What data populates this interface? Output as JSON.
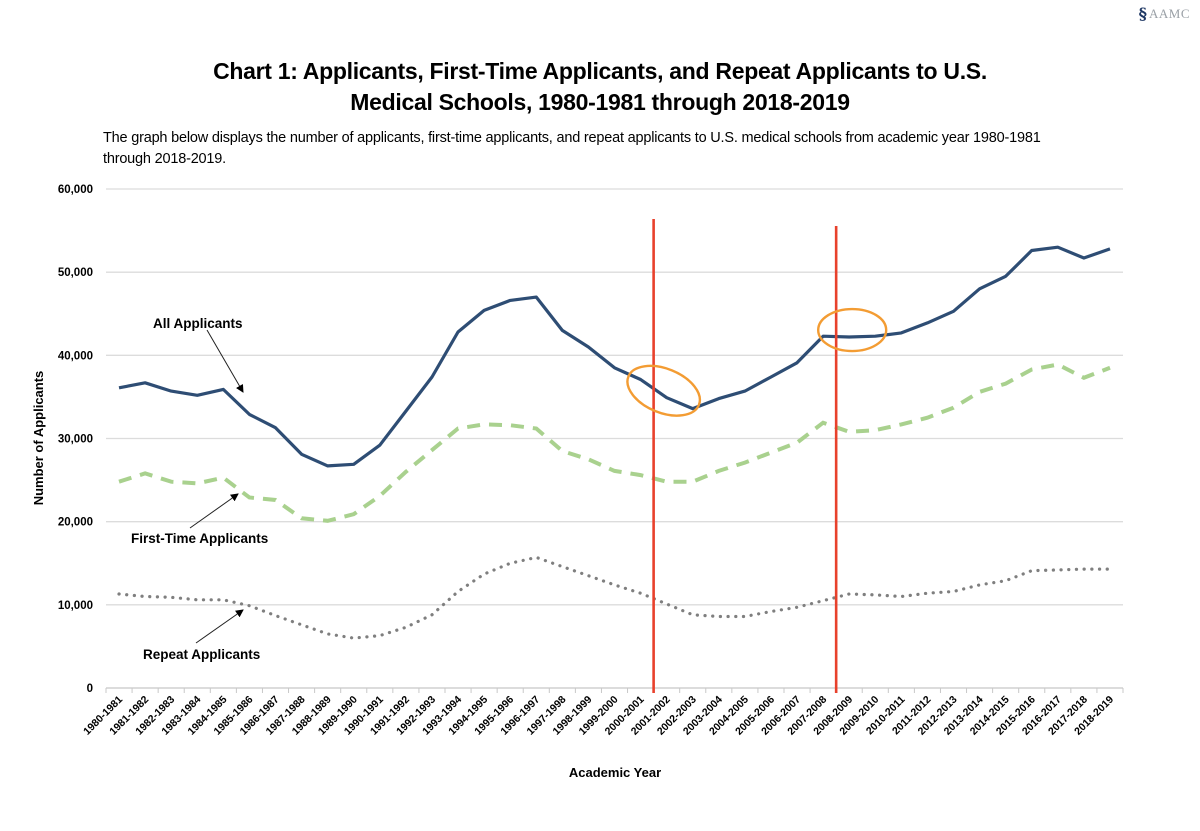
{
  "logo": {
    "mark": "§",
    "text": "AAMC"
  },
  "title_lines": [
    "Chart 1: Applicants, First-Time Applicants, and Repeat Applicants to U.S.",
    "Medical Schools, 1980-1981 through 2018-2019"
  ],
  "subtitle": "The graph below displays the number of applicants, first-time applicants, and repeat applicants  to U.S. medical schools from academic year 1980-1981 through 2018-2019.",
  "chart_data": {
    "type": "line",
    "title": "Chart 1: Applicants, First-Time Applicants, and Repeat Applicants to U.S. Medical Schools, 1980-1981 through 2018-2019",
    "xlabel": "Academic Year",
    "ylabel": "Number of Applicants",
    "ylim": [
      0,
      60000
    ],
    "yticks": [
      0,
      10000,
      20000,
      30000,
      40000,
      50000,
      60000
    ],
    "ytick_labels": [
      "0",
      "10,000",
      "20,000",
      "30,000",
      "40,000",
      "50,000",
      "60,000"
    ],
    "grid": "horizontal",
    "legend": "none (inline annotations)",
    "categories": [
      "1980-1981",
      "1981-1982",
      "1982-1983",
      "1983-1984",
      "1984-1985",
      "1985-1986",
      "1986-1987",
      "1987-1988",
      "1988-1989",
      "1989-1990",
      "1990-1991",
      "1991-1992",
      "1992-1993",
      "1993-1994",
      "1994-1995",
      "1995-1996",
      "1996-1997",
      "1997-1998",
      "1998-1999",
      "1999-2000",
      "2000-2001",
      "2001-2002",
      "2002-2003",
      "2003-2004",
      "2004-2005",
      "2005-2006",
      "2006-2007",
      "2007-2008",
      "2008-2009",
      "2009-2010",
      "2010-2011",
      "2011-2012",
      "2012-2013",
      "2013-2014",
      "2014-2015",
      "2015-2016",
      "2016-2017",
      "2017-2018",
      "2018-2019"
    ],
    "series": [
      {
        "name": "All Applicants",
        "style": "solid",
        "color": "#2e4d74",
        "values": [
          36100,
          36700,
          35700,
          35200,
          35900,
          32900,
          31300,
          28100,
          26700,
          26900,
          29200,
          33300,
          37400,
          42800,
          45400,
          46600,
          47000,
          43000,
          41000,
          38500,
          37100,
          34900,
          33600,
          34800,
          35700,
          37400,
          39100,
          42300,
          42200,
          42300,
          42700,
          43900,
          45300,
          48000,
          49500,
          52600,
          53000,
          51700,
          52800
        ]
      },
      {
        "name": "First-Time Applicants",
        "style": "dashed",
        "color": "#a9d18e",
        "values": [
          24800,
          25800,
          24800,
          24600,
          25300,
          22900,
          22600,
          20400,
          20100,
          20900,
          23100,
          26000,
          28600,
          31200,
          31700,
          31600,
          31200,
          28500,
          27500,
          26100,
          25600,
          24800,
          24800,
          26100,
          27100,
          28300,
          29500,
          31900,
          30800,
          31000,
          31700,
          32500,
          33700,
          35600,
          36600,
          38300,
          38900,
          37300,
          38500
        ]
      },
      {
        "name": "Repeat Applicants",
        "style": "dotted",
        "color": "#7f7f7f",
        "values": [
          11300,
          11000,
          10900,
          10600,
          10600,
          9900,
          8700,
          7600,
          6500,
          6000,
          6300,
          7300,
          8800,
          11600,
          13700,
          15000,
          15700,
          14600,
          13500,
          12400,
          11400,
          10100,
          8800,
          8600,
          8600,
          9200,
          9700,
          10500,
          11300,
          11200,
          11000,
          11400,
          11600,
          12400,
          12900,
          14100,
          14200,
          14300,
          14300
        ]
      }
    ],
    "annotations": [
      {
        "text": "All Applicants",
        "points_to": "All Applicants",
        "at_category": "1985-1986"
      },
      {
        "text": "First-Time Applicants",
        "points_to": "First-Time Applicants",
        "at_category": "1985-1986"
      },
      {
        "text": "Repeat Applicants",
        "points_to": "Repeat Applicants",
        "at_category": "1985-1986"
      }
    ],
    "reference_lines": [
      {
        "type": "vertical",
        "between": [
          "2000-2001",
          "2001-2002"
        ],
        "color": "#e8412c"
      },
      {
        "type": "vertical",
        "between": [
          "2007-2008",
          "2008-2009"
        ],
        "color": "#e8412c"
      }
    ],
    "highlight_ellipses": [
      {
        "around_category": "2001-2002",
        "series": "All Applicants",
        "color": "#f39c33"
      },
      {
        "around_category": "2008-2009",
        "series": "All Applicants",
        "color": "#f39c33"
      }
    ]
  }
}
